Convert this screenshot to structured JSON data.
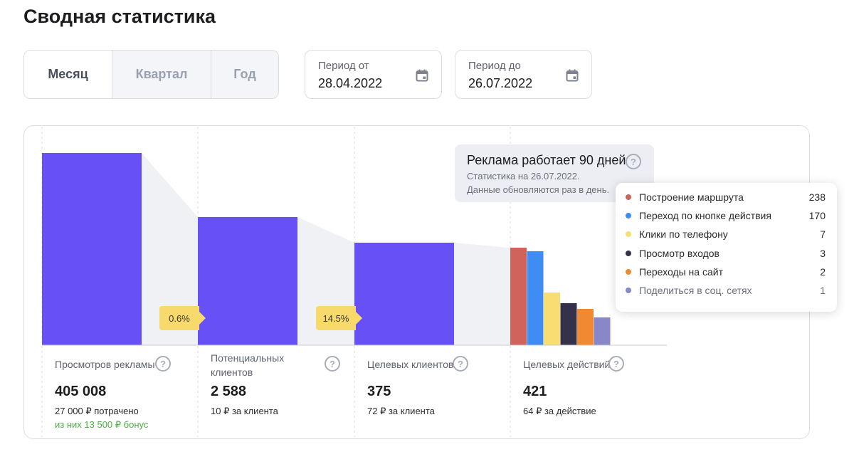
{
  "title": "Сводная статистика",
  "period_tabs": [
    {
      "label": "Месяц",
      "active": true
    },
    {
      "label": "Квартал",
      "active": false
    },
    {
      "label": "Год",
      "active": false
    }
  ],
  "date_from": {
    "label": "Период от",
    "value": "28.04.2022"
  },
  "date_to": {
    "label": "Период до",
    "value": "26.07.2022"
  },
  "funnel": {
    "bar_color": "#6650f6",
    "metrics": [
      {
        "label": "Просмотров рекламы",
        "value": "405 008",
        "sub": "27 000 ₽ потрачено",
        "bonus": "из них 13 500 ₽ бонус"
      },
      {
        "label": "Потенциальных клиентов",
        "value": "2 588",
        "sub": "10 ₽ за клиента"
      },
      {
        "label": "Целевых клиентов",
        "value": "375",
        "sub": "72 ₽ за клиента"
      },
      {
        "label": "Целевых действий",
        "value": "421",
        "sub": "64 ₽ за действие"
      }
    ],
    "conversions": [
      "0.6%",
      "14.5%"
    ]
  },
  "info_tip": {
    "heading": "Реклама работает 90 дней",
    "line1": "Статистика на 26.07.2022.",
    "line2": "Данные обновляются раз в день."
  },
  "actions": [
    {
      "label": "Построение маршрута",
      "count": "238",
      "color": "#d0645a"
    },
    {
      "label": "Переход по кнопке действия",
      "count": "170",
      "color": "#3f8cf4"
    },
    {
      "label": "Клики по телефону",
      "count": "7",
      "color": "#f8de72"
    },
    {
      "label": "Просмотр входов",
      "count": "3",
      "color": "#34324a"
    },
    {
      "label": "Переходы на сайт",
      "count": "2",
      "color": "#ef8a33"
    },
    {
      "label": "Поделиться в соц. сетях",
      "count": "1",
      "color": "#8a87c8",
      "muted": true
    }
  ],
  "help_glyph": "?"
}
